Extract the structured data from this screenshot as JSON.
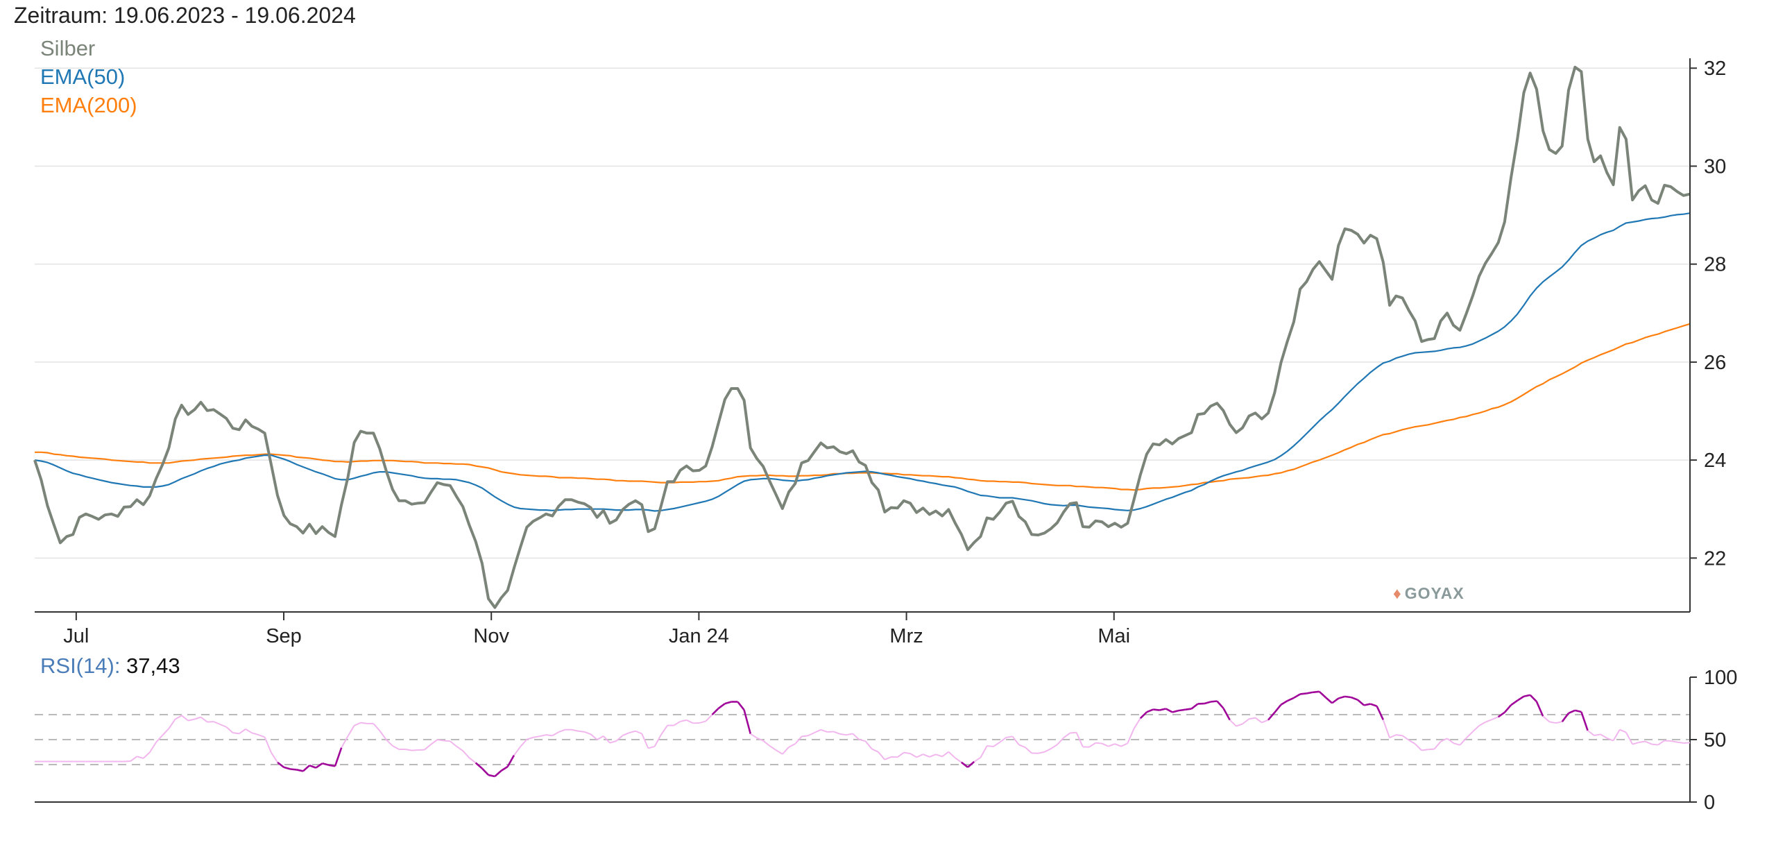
{
  "header": {
    "period": "Zeitraum: 19.06.2023 - 19.06.2024"
  },
  "watermark": {
    "text": "GOYAX",
    "icon": "bull-icon"
  },
  "colors": {
    "silber": "#7b8478",
    "ema50": "#1f77b4",
    "ema200": "#ff7f0e",
    "rsi_light": "#f2b6ee",
    "rsi_dark": "#a0089a",
    "grid": "#e3e3e3",
    "band": "#b9b9b9"
  },
  "chart_data": [
    {
      "type": "line",
      "x_labels": [
        "Jul",
        "Sep",
        "Nov",
        "Jan 24",
        "Mrz",
        "Mai"
      ],
      "y_ticks": [
        22,
        24,
        26,
        28,
        30,
        32
      ],
      "ylim": [
        20.9,
        32.4
      ],
      "legend_position": "top-left",
      "grid": true,
      "series": [
        {
          "name": "Silber",
          "x": [
            0,
            0.5,
            1,
            1.5,
            2,
            2.5,
            3,
            3.5,
            4,
            4.5,
            5,
            5.5,
            6,
            6.5,
            7,
            7.5,
            8,
            8.5,
            9,
            9.5,
            10,
            10.5,
            11,
            11.5,
            12,
            12.5
          ],
          "values": [
            24.0,
            22.4,
            22.9,
            22.8,
            23.2,
            23.3,
            25.0,
            25.1,
            24.8,
            24.6,
            22.8,
            22.6,
            24.6,
            24.2,
            23.0,
            23.1,
            23.4,
            23.2,
            21.0,
            22.0,
            23.0,
            23.2,
            23.0,
            22.8,
            23.5,
            23.6
          ]
        },
        {
          "name": "EMA(50)",
          "x": [],
          "values": []
        },
        {
          "name": "EMA(200)",
          "x": [],
          "values": []
        }
      ]
    },
    {
      "type": "line",
      "name": "RSI(14)",
      "current_value_label": "37,43",
      "y_ticks": [
        0,
        50,
        100
      ],
      "ylim": [
        0,
        100
      ],
      "bands": [
        30,
        50,
        70
      ],
      "series": [
        {
          "name": "RSI(14)",
          "values": []
        }
      ]
    }
  ]
}
